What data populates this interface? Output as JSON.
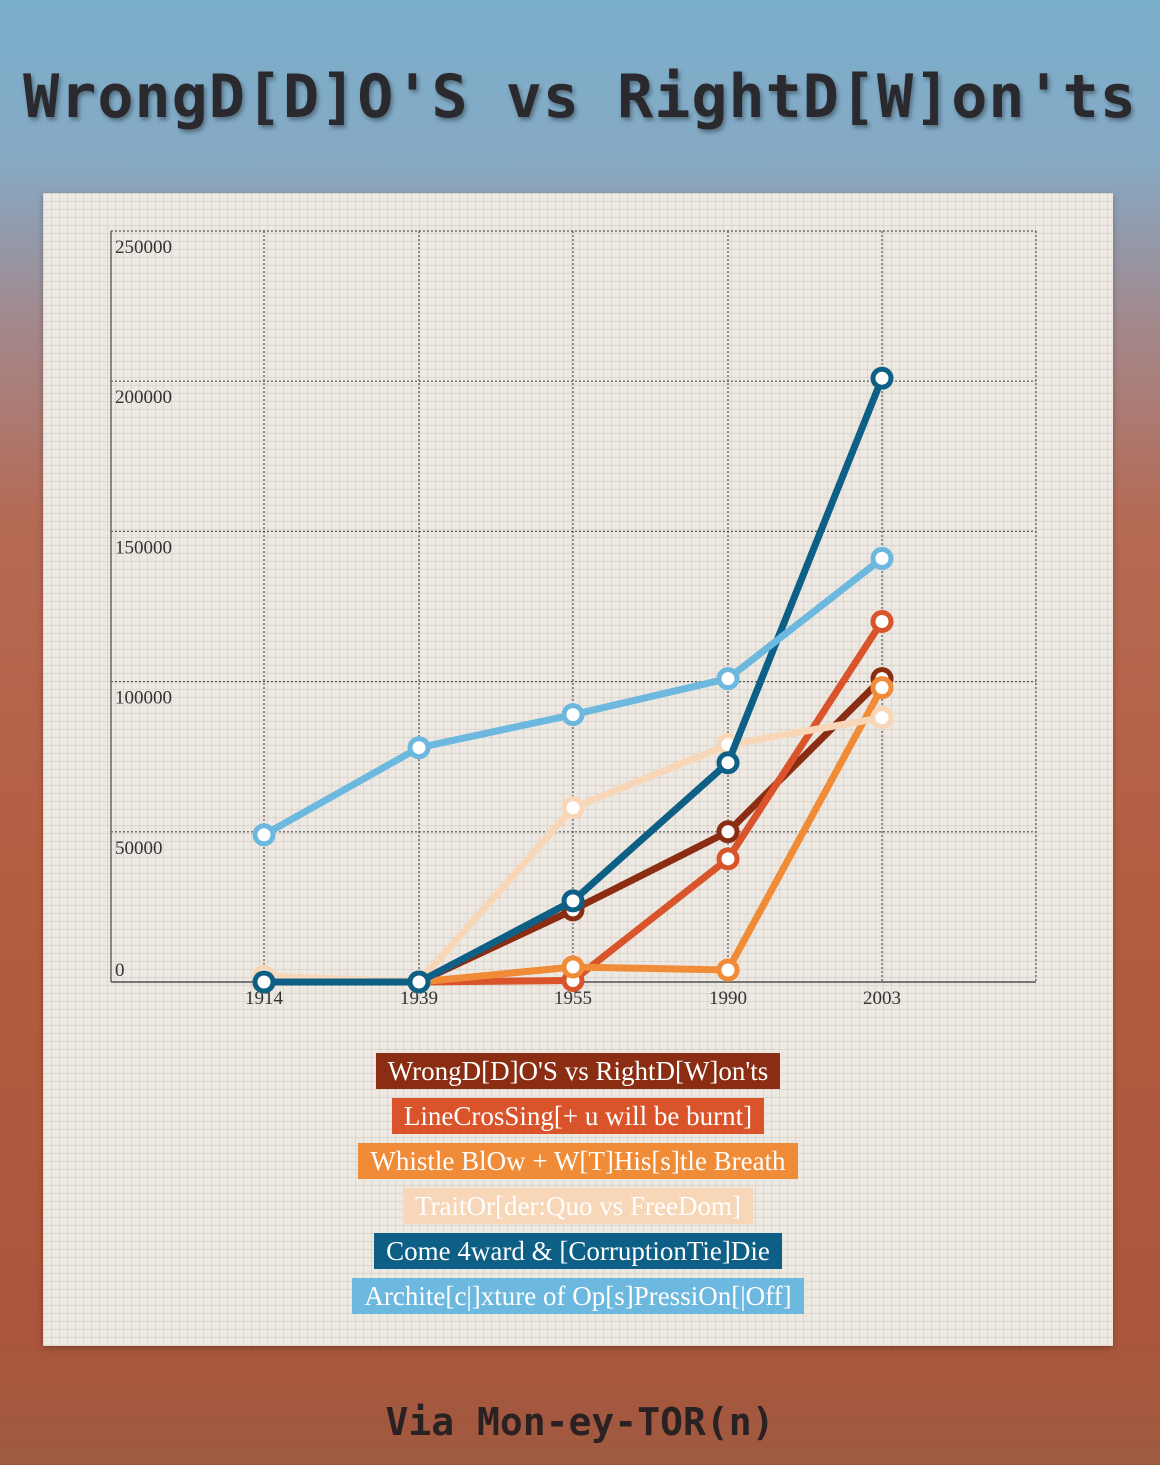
{
  "header": {
    "title": "WrongD[D]O'S vs RightD[W]on'ts"
  },
  "footer": {
    "text": "Via Mon-ey-TOR(n)"
  },
  "chart_data": {
    "type": "line",
    "title": "WrongD[D]O'S vs RightD[W]on'ts",
    "xlabel": "",
    "ylabel": "",
    "x": [
      "1914",
      "1939",
      "1955",
      "1990",
      "2003"
    ],
    "ylim": [
      0,
      250000
    ],
    "yticks": [
      "0",
      "50000",
      "100000",
      "150000",
      "200000",
      "250000"
    ],
    "grid": true,
    "legend_position": "bottom",
    "series": [
      {
        "name": "WrongD[D]O'S vs RightD[W]on'ts",
        "color": "#8b2d12",
        "values": [
          0,
          0,
          24000,
          50000,
          101000
        ]
      },
      {
        "name": "LineCrosSing[+ u will be burnt]",
        "color": "#d9532b",
        "values": [
          0,
          0,
          500,
          41000,
          120000
        ]
      },
      {
        "name": "Whistle BlOw + W[T]His[s]tle Breath",
        "color": "#f08c38",
        "values": [
          0,
          0,
          5000,
          4000,
          98000
        ]
      },
      {
        "name": "TraitOr[der:Quo vs FreeDom]",
        "color": "#f7d7b8",
        "values": [
          2000,
          0,
          58000,
          79000,
          88000
        ]
      },
      {
        "name": "Come 4ward & [CorruptionTie]Die",
        "color": "#0d5f86",
        "values": [
          0,
          0,
          27000,
          73000,
          201000
        ]
      },
      {
        "name": "Archite[c|]xture of Op[s]PressiOn[|Off]",
        "color": "#6db8de",
        "values": [
          49000,
          78000,
          89000,
          101000,
          141000
        ]
      }
    ]
  }
}
